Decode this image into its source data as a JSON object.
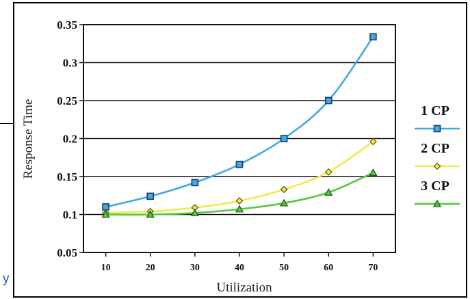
{
  "fragment": {
    "link_text": "y"
  },
  "chart_data": {
    "type": "line",
    "title": "",
    "xlabel": "Utilization",
    "ylabel": "Response Time",
    "x": [
      10,
      20,
      30,
      40,
      50,
      60,
      70
    ],
    "xticks": [
      "10",
      "20",
      "30",
      "40",
      "50",
      "60",
      "70"
    ],
    "yticks": [
      "0.05",
      "0.1",
      "0.15",
      "0.2",
      "0.25",
      "0.3",
      "0.35"
    ],
    "ylim": [
      0.05,
      0.35
    ],
    "grid": "horizontal",
    "legend_position": "right",
    "series": [
      {
        "name": "1 CP",
        "marker": "square",
        "color": "#3fa9e0",
        "values": [
          0.11,
          0.124,
          0.142,
          0.166,
          0.2,
          0.25,
          0.334
        ]
      },
      {
        "name": "2 CP",
        "marker": "diamond",
        "color": "#f2ea4a",
        "values": [
          0.102,
          0.104,
          0.109,
          0.118,
          0.133,
          0.156,
          0.196
        ]
      },
      {
        "name": "3 CP",
        "marker": "triangle",
        "color": "#52c83c",
        "values": [
          0.1,
          0.1,
          0.102,
          0.107,
          0.115,
          0.129,
          0.155
        ]
      }
    ]
  }
}
